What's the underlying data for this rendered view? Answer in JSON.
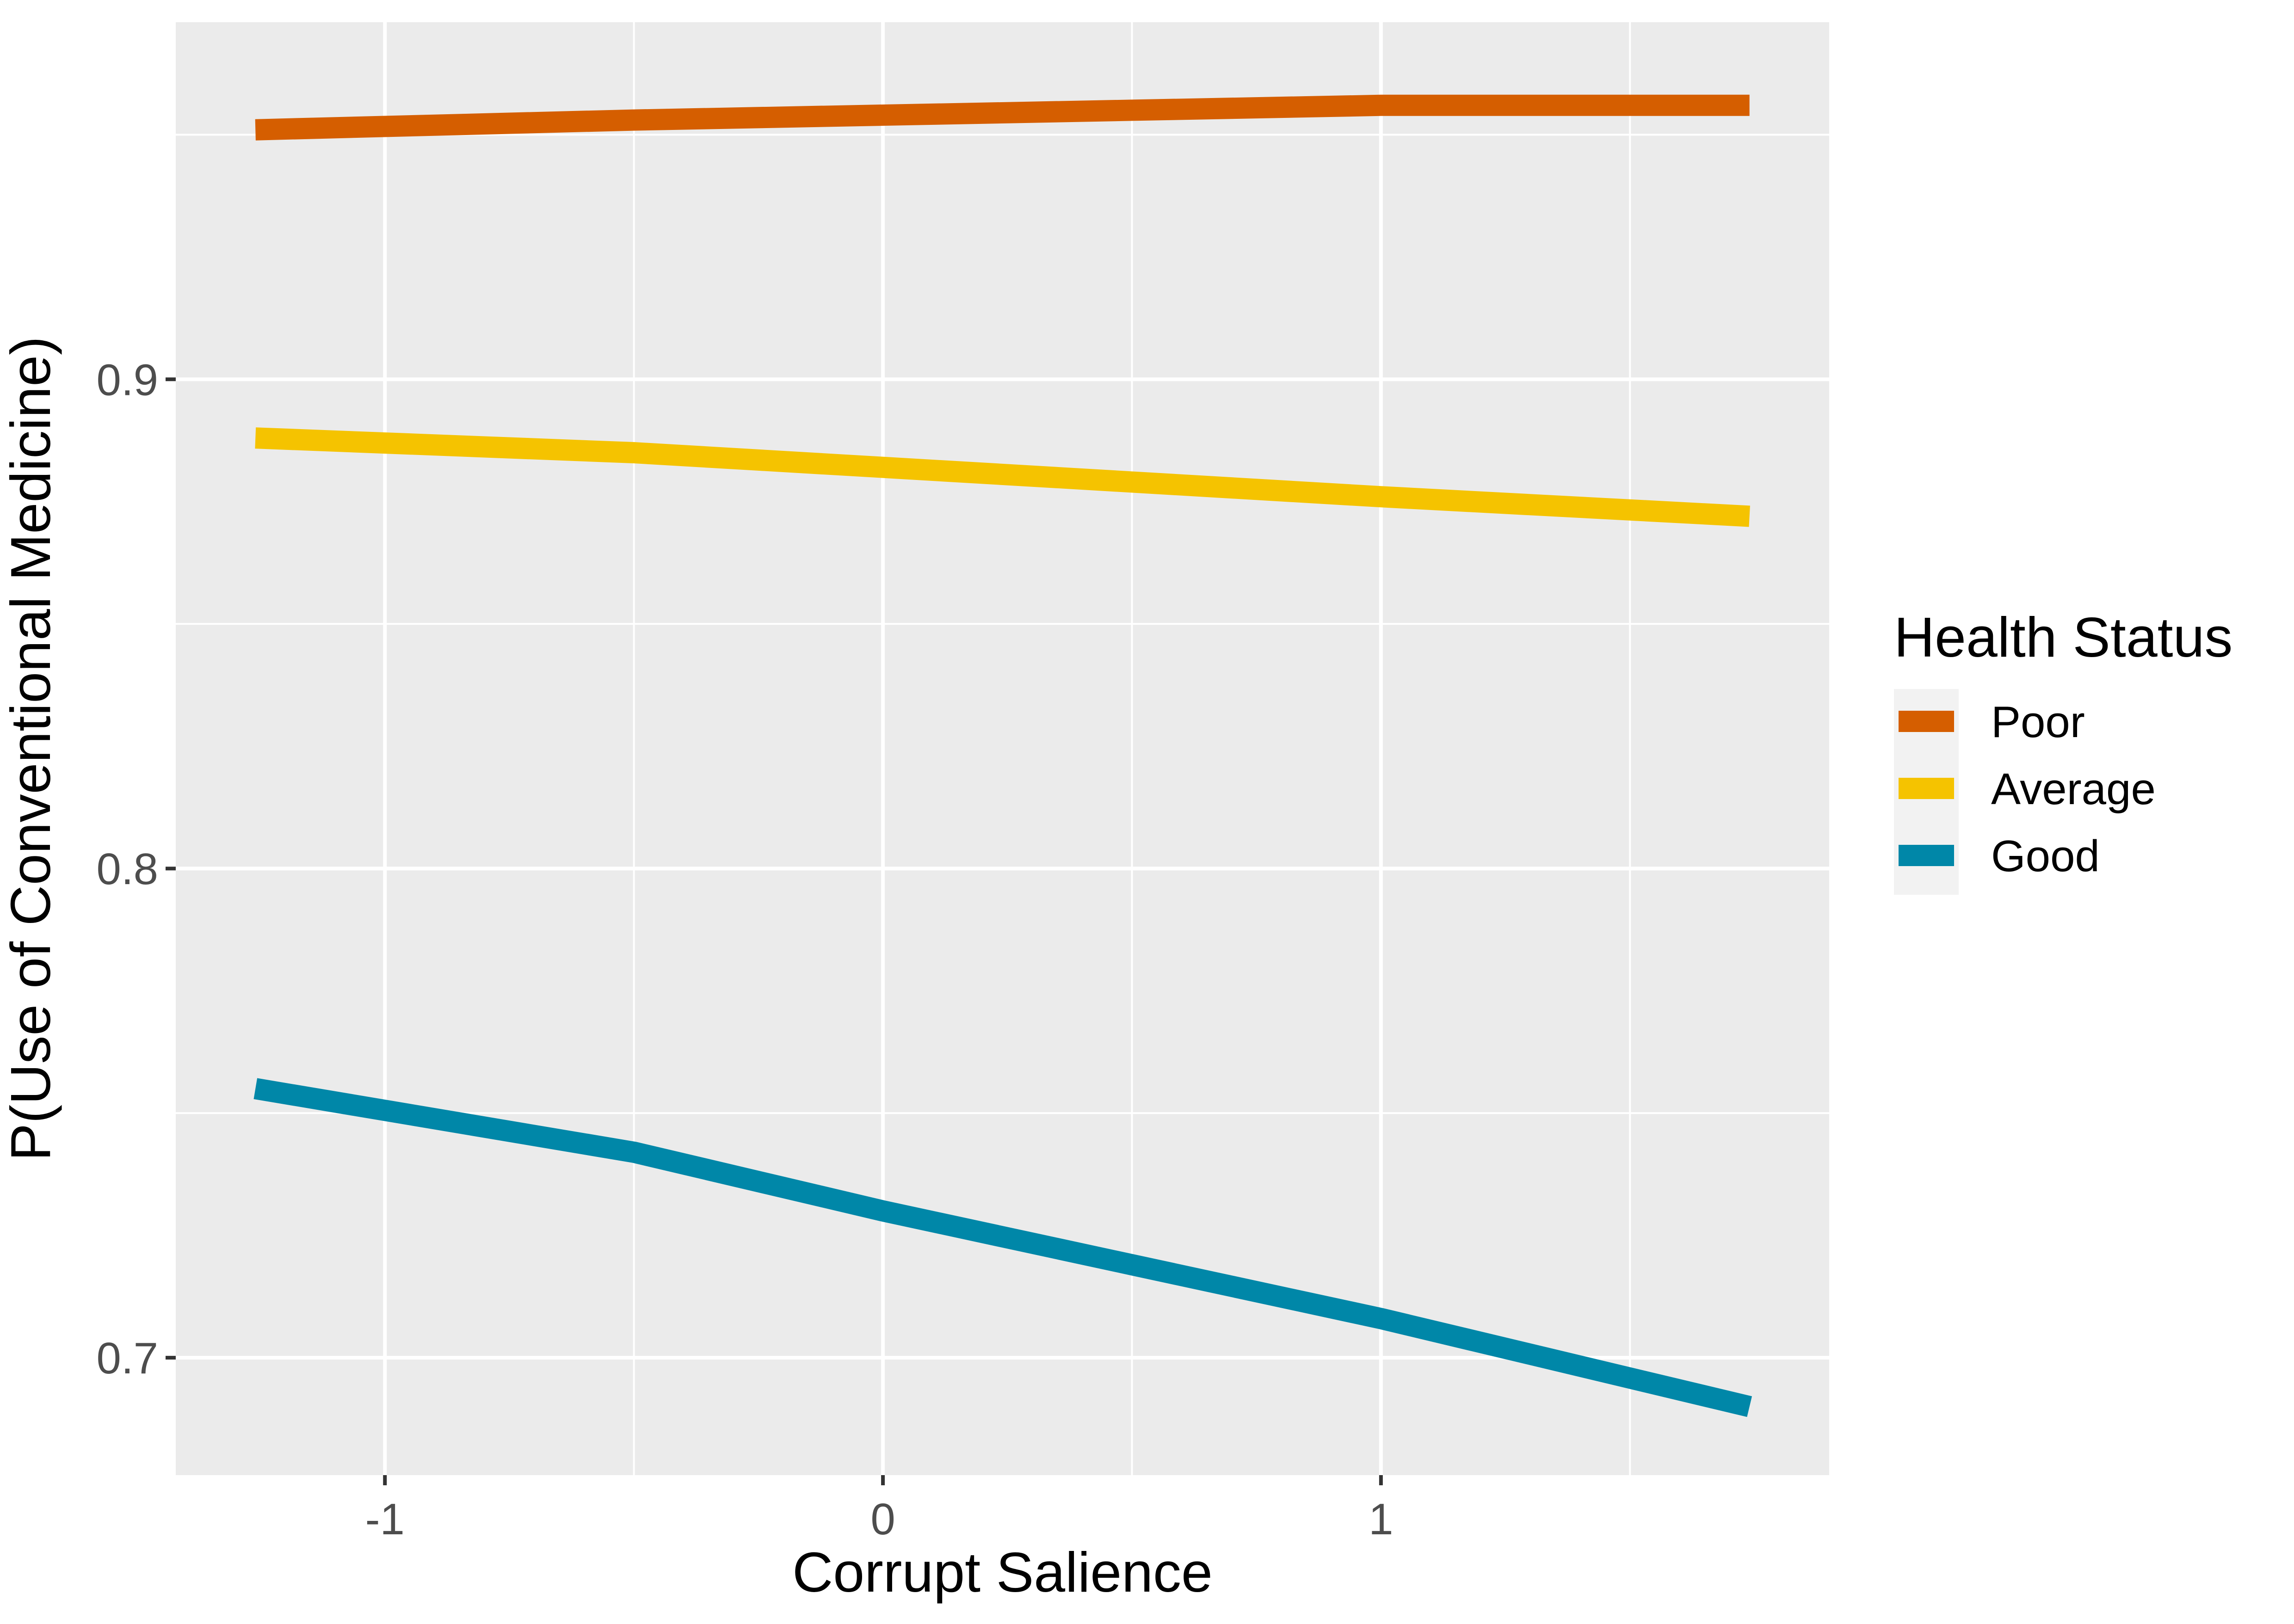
{
  "chart_data": {
    "type": "line",
    "title": "",
    "xlabel": "Corrupt Salience",
    "ylabel": "P(Use of Conventional Medicine)",
    "xlim": [
      -1.42,
      1.9
    ],
    "ylim": [
      0.676,
      0.973
    ],
    "x_ticks": [
      -1,
      0,
      1
    ],
    "x_tick_labels": [
      "-1",
      "0",
      "1"
    ],
    "x_minor_ticks": [
      -0.5,
      0.5,
      1.5
    ],
    "y_ticks": [
      0.7,
      0.8,
      0.9
    ],
    "y_tick_labels": [
      "0.7",
      "0.8",
      "0.9"
    ],
    "y_minor_ticks": [
      0.75,
      0.85,
      0.95
    ],
    "grid": true,
    "legend": {
      "title": "Health Status",
      "position": "right"
    },
    "series": [
      {
        "name": "Poor",
        "color": "#D55E00",
        "x": [
          -1.26,
          -0.5,
          0,
          0.5,
          1,
          1.74
        ],
        "y": [
          0.951,
          0.953,
          0.954,
          0.955,
          0.956,
          0.956
        ]
      },
      {
        "name": "Average",
        "color": "#F5C300",
        "x": [
          -1.26,
          -0.5,
          0,
          0.5,
          1,
          1.74
        ],
        "y": [
          0.888,
          0.885,
          0.882,
          0.879,
          0.876,
          0.872
        ]
      },
      {
        "name": "Good",
        "color": "#0087A8",
        "x": [
          -1.26,
          -0.5,
          0,
          0.5,
          1,
          1.74
        ],
        "y": [
          0.755,
          0.742,
          0.73,
          0.719,
          0.708,
          0.69
        ]
      }
    ]
  }
}
